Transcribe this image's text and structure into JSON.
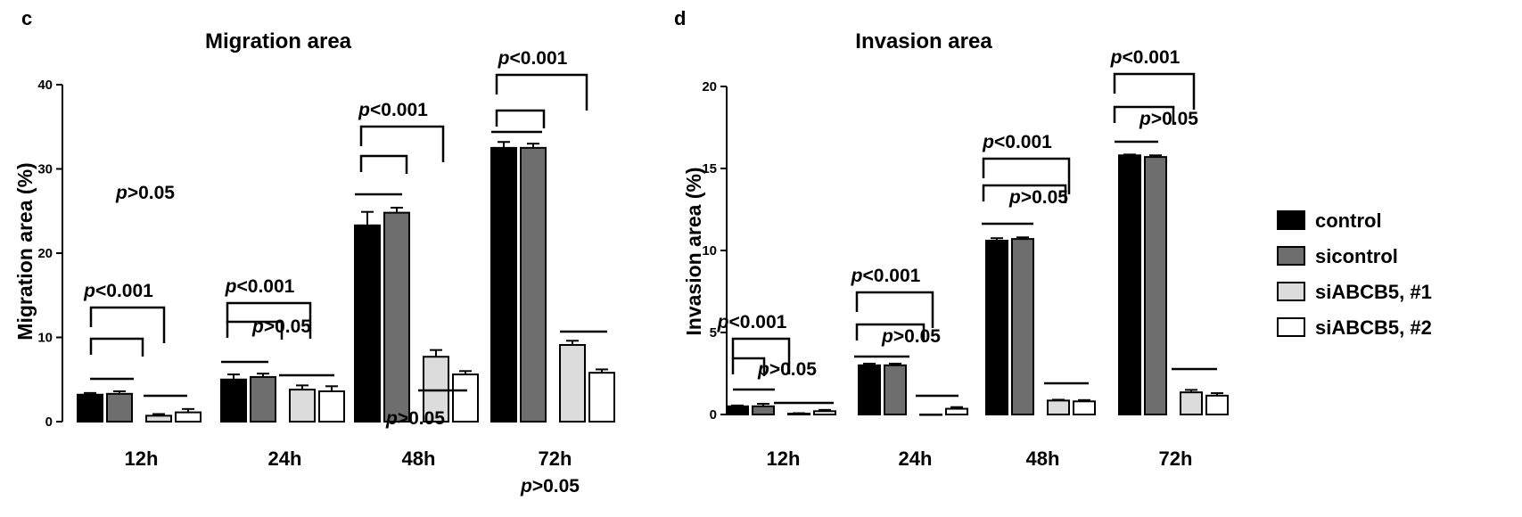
{
  "legend": {
    "items": [
      {
        "label": "control",
        "color": "#000000"
      },
      {
        "label": "sicontrol",
        "color": "#6e6e6e"
      },
      {
        "label": "siABCB5, #1",
        "color": "#dcdcdc"
      },
      {
        "label": "siABCB5, #2",
        "color": "#ffffff"
      }
    ]
  },
  "chart_data": [
    {
      "panel": "c",
      "type": "bar",
      "title": "Migration area",
      "xlabel": "",
      "ylabel": "Migration area (%)",
      "ylim": [
        0,
        40
      ],
      "yticks": [
        "0",
        "10",
        "20",
        "30",
        "40"
      ],
      "categories": [
        "12h",
        "24h",
        "48h",
        "72h"
      ],
      "series": [
        {
          "name": "control",
          "values": [
            3.2,
            5.0,
            23.3,
            32.5
          ],
          "errors": [
            0.2,
            0.6,
            1.6,
            0.7
          ]
        },
        {
          "name": "sicontrol",
          "values": [
            3.3,
            5.3,
            24.8,
            32.5
          ],
          "errors": [
            0.3,
            0.4,
            0.6,
            0.5
          ]
        },
        {
          "name": "siABCB5, #1",
          "values": [
            0.7,
            3.8,
            7.7,
            9.1
          ],
          "errors": [
            0.2,
            0.5,
            0.8,
            0.5
          ]
        },
        {
          "name": "siABCB5, #2",
          "values": [
            1.1,
            3.6,
            5.6,
            5.8
          ],
          "errors": [
            0.4,
            0.6,
            0.4,
            0.4
          ]
        }
      ],
      "annotations": [
        {
          "group": "12h",
          "text_p": "p",
          "text_rest": "<0.001"
        },
        {
          "group": "12h",
          "text_p": "p",
          "text_rest": ">0.05"
        },
        {
          "group": "24h",
          "text_p": "p",
          "text_rest": "<0.001"
        },
        {
          "group": "24h",
          "text_p": "p",
          "text_rest": ">0.05"
        },
        {
          "group": "48h",
          "text_p": "p",
          "text_rest": "<0.001"
        },
        {
          "group": "48h",
          "text_p": "p",
          "text_rest": ">0.05"
        },
        {
          "group": "72h",
          "text_p": "p",
          "text_rest": "<0.001"
        },
        {
          "group": "72h",
          "text_p": "p",
          "text_rest": ">0.05"
        }
      ]
    },
    {
      "panel": "d",
      "type": "bar",
      "title": "Invasion area",
      "xlabel": "",
      "ylabel": "Invasion area (%)",
      "ylim": [
        0,
        20
      ],
      "yticks": [
        "0",
        "5",
        "10",
        "15",
        "20"
      ],
      "categories": [
        "12h",
        "24h",
        "48h",
        "72h"
      ],
      "series": [
        {
          "name": "control",
          "values": [
            0.5,
            3.0,
            10.6,
            15.8
          ],
          "errors": [
            0.05,
            0.1,
            0.15,
            0.05
          ]
        },
        {
          "name": "sicontrol",
          "values": [
            0.5,
            3.0,
            10.7,
            15.7
          ],
          "errors": [
            0.15,
            0.1,
            0.1,
            0.1
          ]
        },
        {
          "name": "siABCB5, #1",
          "values": [
            0.05,
            0.0,
            0.85,
            1.35
          ],
          "errors": [
            0.03,
            0.0,
            0.05,
            0.15
          ]
        },
        {
          "name": "siABCB5, #2",
          "values": [
            0.2,
            0.35,
            0.8,
            1.15
          ],
          "errors": [
            0.08,
            0.1,
            0.08,
            0.15
          ]
        }
      ],
      "annotations": [
        {
          "group": "12h",
          "text_p": "p",
          "text_rest": "<0.001"
        },
        {
          "group": "12h",
          "text_p": "p",
          "text_rest": ">0.05"
        },
        {
          "group": "24h",
          "text_p": "p",
          "text_rest": "<0.001"
        },
        {
          "group": "24h",
          "text_p": "p",
          "text_rest": ">0.05"
        },
        {
          "group": "48h",
          "text_p": "p",
          "text_rest": "<0.001"
        },
        {
          "group": "48h",
          "text_p": "p",
          "text_rest": ">0.05"
        },
        {
          "group": "72h",
          "text_p": "p",
          "text_rest": "<0.001"
        },
        {
          "group": "72h",
          "text_p": "p",
          "text_rest": ">0.05"
        }
      ]
    }
  ]
}
